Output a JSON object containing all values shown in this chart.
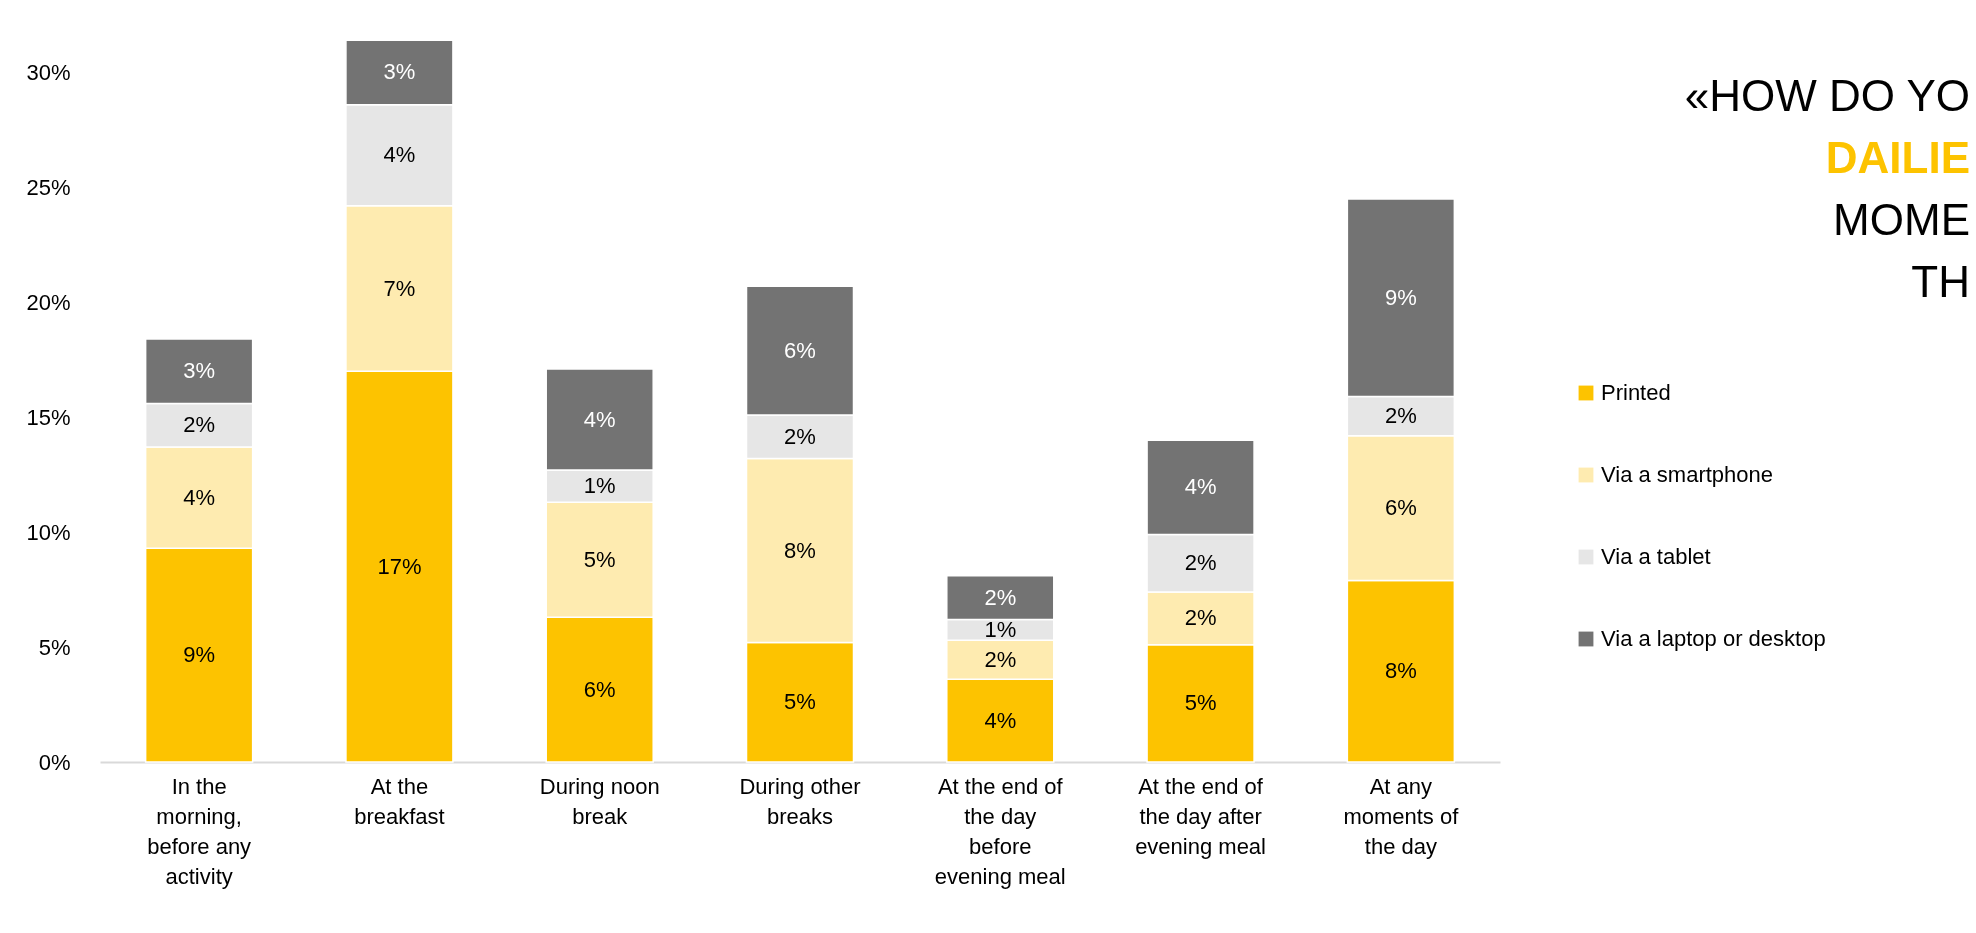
{
  "chart_data": {
    "type": "bar",
    "stacked": true,
    "title": "«HOW DO YO\nDAILIE\nMOME\nTH",
    "categories": [
      "In the morning, before any activity",
      "At the breakfast",
      "During noon break",
      "During other breaks",
      "At the end of the day before evening meal",
      "At the end of the day after evening meal",
      "At any moments of the day"
    ],
    "series": [
      {
        "name": "Printed",
        "color": "#fdc300",
        "values": [
          9.3,
          17.0,
          6.3,
          5.2,
          3.6,
          5.1,
          7.9
        ],
        "value_labels": [
          "9%",
          "17%",
          "6%",
          "5%",
          "4%",
          "5%",
          "8%"
        ]
      },
      {
        "name": "Via a smartphone",
        "color": "#feebb0",
        "values": [
          4.4,
          7.2,
          5.0,
          8.0,
          1.7,
          2.3,
          6.3
        ],
        "value_labels": [
          "4%",
          "7%",
          "5%",
          "8%",
          "2%",
          "2%",
          "6%"
        ]
      },
      {
        "name": "Via a tablet",
        "color": "#e6e6e6",
        "values": [
          1.9,
          4.4,
          1.4,
          1.9,
          0.9,
          2.5,
          1.7
        ],
        "value_labels": [
          "2%",
          "4%",
          "1%",
          "2%",
          "1%",
          "2%",
          "2%"
        ]
      },
      {
        "name": "Via a laptop or desktop",
        "color": "#737373",
        "values": [
          2.8,
          2.8,
          4.4,
          5.6,
          1.9,
          4.1,
          8.6
        ],
        "value_labels": [
          "3%",
          "3%",
          "4%",
          "6%",
          "2%",
          "4%",
          "9%"
        ]
      }
    ],
    "ylim": [
      0,
      31.5
    ],
    "yticks": [
      {
        "value": 0,
        "label": "0%"
      },
      {
        "value": 5,
        "label": "5%"
      },
      {
        "value": 10,
        "label": "10%"
      },
      {
        "value": 15,
        "label": "15%"
      },
      {
        "value": 20,
        "label": "20%"
      },
      {
        "value": 25,
        "label": "25%"
      },
      {
        "value": 30,
        "label": "30%"
      }
    ],
    "grid": false,
    "legend": "right"
  }
}
